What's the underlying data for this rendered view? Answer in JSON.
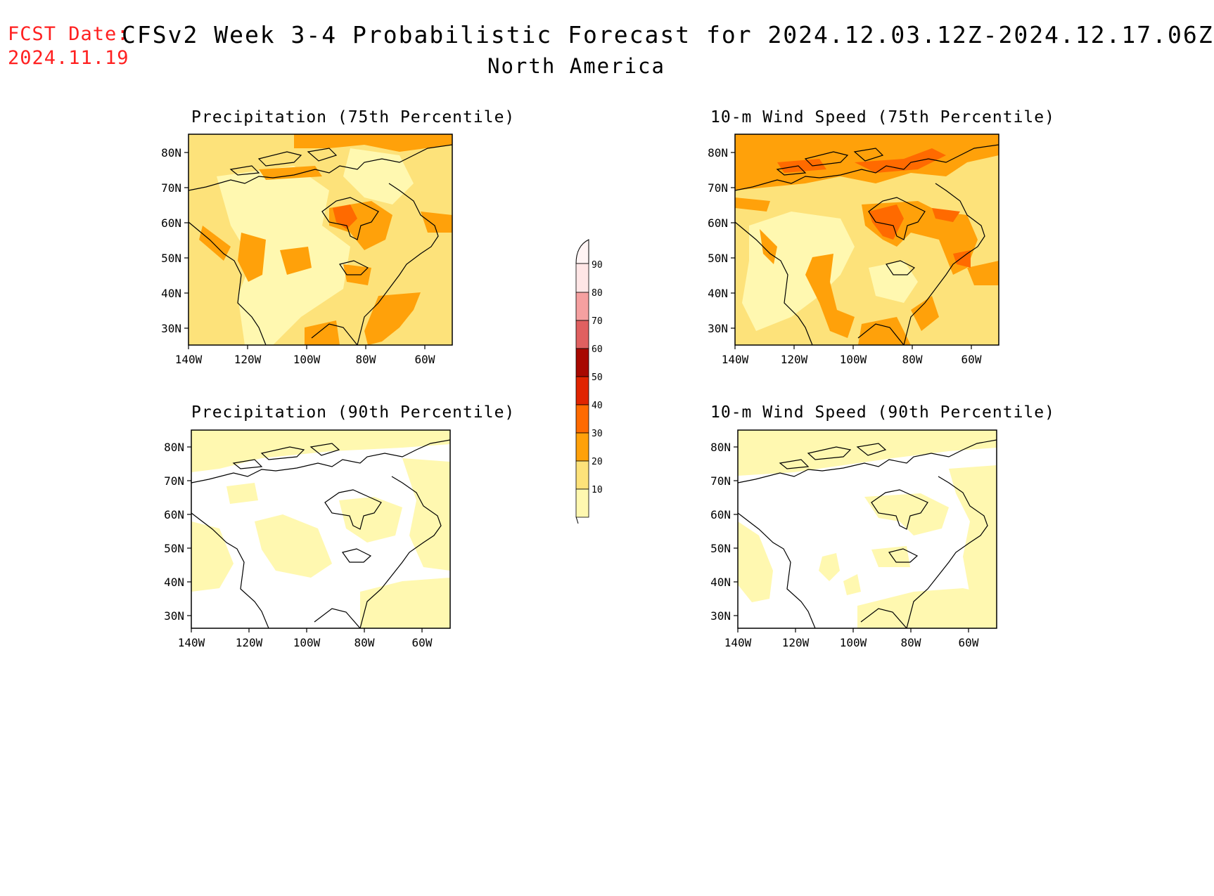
{
  "header": {
    "fcst_label": "FCST Date:",
    "fcst_date": "2024.11.19",
    "title": "CFSv2 Week 3-4 Probabilistic Forecast for 2024.12.03.12Z-2024.12.17.06Z",
    "subtitle": "North America"
  },
  "colors": {
    "c10": "#fff8b0",
    "c20": "#fde27a",
    "c30": "#ffa10a",
    "c40": "#ff6a00",
    "c50": "#e02400",
    "c60": "#a80800",
    "c70": "#e06060",
    "c80": "#f5a0a0",
    "c90": "#ffe6e6"
  },
  "colorbar": {
    "levels": [
      "10",
      "20",
      "30",
      "40",
      "50",
      "60",
      "70",
      "80",
      "90"
    ]
  },
  "panels": [
    {
      "id": "precip-75",
      "title": "Precipitation (75th Percentile)",
      "x_ticks": [
        "140W",
        "120W",
        "100W",
        "80W",
        "60W"
      ],
      "y_ticks": [
        "80N",
        "70N",
        "60N",
        "50N",
        "40N",
        "30N"
      ],
      "background_level": "c20"
    },
    {
      "id": "wind-75",
      "title": "10-m Wind Speed (75th Percentile)",
      "x_ticks": [
        "140W",
        "120W",
        "100W",
        "80W",
        "60W"
      ],
      "y_ticks": [
        "80N",
        "70N",
        "60N",
        "50N",
        "40N",
        "30N"
      ],
      "background_level": "c20"
    },
    {
      "id": "precip-90",
      "title": "Precipitation (90th Percentile)",
      "x_ticks": [
        "140W",
        "120W",
        "100W",
        "80W",
        "60W"
      ],
      "y_ticks": [
        "80N",
        "70N",
        "60N",
        "50N",
        "40N",
        "30N"
      ],
      "background_level": "none"
    },
    {
      "id": "wind-90",
      "title": "10-m Wind Speed (90th Percentile)",
      "x_ticks": [
        "140W",
        "120W",
        "100W",
        "80W",
        "60W"
      ],
      "y_ticks": [
        "80N",
        "70N",
        "60N",
        "50N",
        "40N",
        "30N"
      ],
      "background_level": "none"
    }
  ]
}
